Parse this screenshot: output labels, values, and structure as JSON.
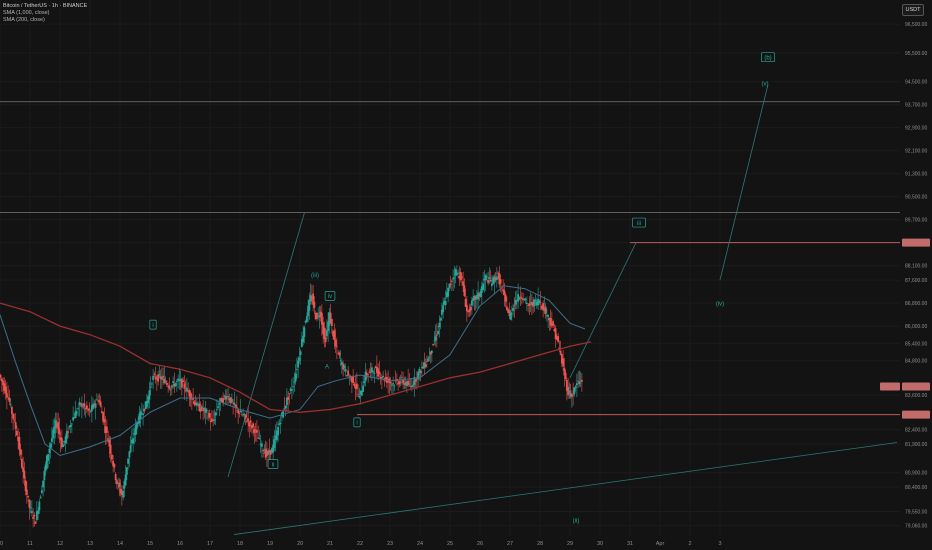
{
  "legend": {
    "symbol": "Bitcoin / TetherUS · 1h · BINANCE",
    "sma1": "SMA (1,000, close)",
    "sma2": "SMA (200, close)"
  },
  "currency": "USDT",
  "colors": {
    "background": "#131313",
    "up": "#26a69a",
    "down": "#ef5350",
    "sma200": "#9c2f2f",
    "sma_other": "#3e6f8c",
    "trend": "#2a7a76",
    "hline_gray": "#8a8a8a",
    "hline_red": "#d66",
    "wave": "#26a69a"
  },
  "chart_data": {
    "type": "candlestick",
    "price_axis_ticks": [
      "96,500.00",
      "95,500.00",
      "94,500.00",
      "93,700.00",
      "92,900.00",
      "92,100.00",
      "91,300.00",
      "90,500.00",
      "89,700.00",
      "88,900.00",
      "88,100.00",
      "87,600.00",
      "86,800.00",
      "86,000.00",
      "85,400.00",
      "84,800.00",
      "83,600.00",
      "82,400.00",
      "81,900.00",
      "80,900.00",
      "80,400.00",
      "79,550.00",
      "79,060.00"
    ],
    "date_ticks": [
      "10",
      "11",
      "12",
      "13",
      "14",
      "15",
      "16",
      "17",
      "18",
      "19",
      "20",
      "21",
      "22",
      "23",
      "24",
      "25",
      "26",
      "27",
      "28",
      "29",
      "30",
      "31",
      "Apr",
      "2",
      "3"
    ],
    "ylim": [
      78700,
      97200
    ],
    "xlim": [
      10,
      40
    ],
    "price_labels": [
      {
        "name": "current",
        "value": 83900,
        "text": ""
      },
      {
        "name": "support",
        "value": 82920,
        "text": ""
      },
      {
        "name": "resistance",
        "value": 88900,
        "text": ""
      }
    ],
    "horizontal_levels": [
      {
        "price": 93800,
        "color": "gray"
      },
      {
        "price": 89950,
        "color": "gray"
      },
      {
        "price": 88900,
        "color": "red",
        "from_day": 31.0
      },
      {
        "price": 82920,
        "color": "red",
        "from_day": 21.9
      }
    ],
    "trendlines": [
      {
        "x1": 17.6,
        "y1": 80750,
        "x2": 20.15,
        "y2": 89950,
        "color": "trend"
      },
      {
        "x1": 17.8,
        "y1": 78750,
        "x2": 39.9,
        "y2": 81950,
        "color": "trend"
      },
      {
        "x1": 29.0,
        "y1": 84200,
        "x2": 31.2,
        "y2": 88900,
        "color": "trend"
      },
      {
        "x1": 34.0,
        "y1": 87600,
        "x2": 35.6,
        "y2": 94400,
        "color": "trend"
      }
    ],
    "wave_labels": [
      {
        "id": "w1",
        "text": "i",
        "boxed": true,
        "day": 15.1,
        "price": 86050
      },
      {
        "id": "w2",
        "text": "ii",
        "boxed": true,
        "day": 19.1,
        "price": 81200
      },
      {
        "id": "w3",
        "text": "(iii)",
        "boxed": false,
        "day": 20.5,
        "price": 87780
      },
      {
        "id": "w4",
        "text": "iv",
        "boxed": true,
        "day": 21.0,
        "price": 87050
      },
      {
        "id": "w5",
        "text": "A",
        "boxed": false,
        "day": 20.9,
        "price": 84600
      },
      {
        "id": "w6",
        "text": "i",
        "boxed": true,
        "day": 21.9,
        "price": 82650
      },
      {
        "id": "w7",
        "text": "(ii)",
        "boxed": false,
        "day": 29.2,
        "price": 79250
      },
      {
        "id": "w8",
        "text": "iii",
        "boxed": true,
        "day": 31.3,
        "price": 89600
      },
      {
        "id": "w9",
        "text": "(iv)",
        "boxed": false,
        "day": 34.0,
        "price": 86800
      },
      {
        "id": "w10",
        "text": "(v)",
        "boxed": false,
        "day": 35.5,
        "price": 94450
      },
      {
        "id": "w11",
        "text": "(b)",
        "boxed": true,
        "day": 35.6,
        "price": 95350
      }
    ],
    "price_path": [
      [
        10.0,
        84300
      ],
      [
        10.3,
        83500
      ],
      [
        10.6,
        82200
      ],
      [
        10.8,
        80800
      ],
      [
        11.0,
        79700
      ],
      [
        11.2,
        79200
      ],
      [
        11.4,
        80300
      ],
      [
        11.6,
        81500
      ],
      [
        11.9,
        82700
      ],
      [
        12.1,
        81800
      ],
      [
        12.4,
        82700
      ],
      [
        12.7,
        83300
      ],
      [
        13.0,
        83000
      ],
      [
        13.3,
        83500
      ],
      [
        13.5,
        82600
      ],
      [
        13.7,
        81700
      ],
      [
        13.9,
        80600
      ],
      [
        14.1,
        80100
      ],
      [
        14.3,
        81500
      ],
      [
        14.6,
        82700
      ],
      [
        14.9,
        83300
      ],
      [
        15.1,
        84200
      ],
      [
        15.4,
        84200
      ],
      [
        15.7,
        83900
      ],
      [
        16.0,
        84100
      ],
      [
        16.3,
        83700
      ],
      [
        16.6,
        83200
      ],
      [
        16.9,
        83000
      ],
      [
        17.1,
        82600
      ],
      [
        17.3,
        83300
      ],
      [
        17.6,
        83600
      ],
      [
        17.9,
        83100
      ],
      [
        18.2,
        82800
      ],
      [
        18.5,
        82400
      ],
      [
        18.7,
        81900
      ],
      [
        18.9,
        81500
      ],
      [
        19.1,
        81700
      ],
      [
        19.3,
        82500
      ],
      [
        19.5,
        83200
      ],
      [
        19.8,
        84000
      ],
      [
        20.0,
        85000
      ],
      [
        20.2,
        86200
      ],
      [
        20.4,
        87100
      ],
      [
        20.55,
        86300
      ],
      [
        20.7,
        86500
      ],
      [
        20.85,
        85400
      ],
      [
        21.0,
        86400
      ],
      [
        21.2,
        85300
      ],
      [
        21.4,
        84700
      ],
      [
        21.6,
        84300
      ],
      [
        21.8,
        84100
      ],
      [
        22.0,
        83500
      ],
      [
        22.2,
        84300
      ],
      [
        22.5,
        84500
      ],
      [
        22.8,
        84200
      ],
      [
        23.1,
        84000
      ],
      [
        23.4,
        84100
      ],
      [
        23.7,
        83900
      ],
      [
        24.0,
        84400
      ],
      [
        24.3,
        84900
      ],
      [
        24.6,
        85800
      ],
      [
        24.8,
        86700
      ],
      [
        25.0,
        87400
      ],
      [
        25.2,
        87900
      ],
      [
        25.4,
        87700
      ],
      [
        25.6,
        86400
      ],
      [
        25.8,
        86900
      ],
      [
        26.0,
        87100
      ],
      [
        26.2,
        87700
      ],
      [
        26.4,
        87500
      ],
      [
        26.6,
        87800
      ],
      [
        26.8,
        87100
      ],
      [
        27.0,
        86300
      ],
      [
        27.2,
        86900
      ],
      [
        27.4,
        87100
      ],
      [
        27.6,
        86700
      ],
      [
        27.8,
        86800
      ],
      [
        28.0,
        86900
      ],
      [
        28.2,
        86500
      ],
      [
        28.4,
        86100
      ],
      [
        28.6,
        85500
      ],
      [
        28.8,
        84500
      ],
      [
        28.95,
        83700
      ],
      [
        29.1,
        83600
      ],
      [
        29.25,
        84000
      ],
      [
        29.4,
        84100
      ]
    ],
    "sma200_path": [
      [
        10.0,
        86800
      ],
      [
        11.0,
        86500
      ],
      [
        12.0,
        86000
      ],
      [
        13.0,
        85700
      ],
      [
        14.0,
        85300
      ],
      [
        15.0,
        84700
      ],
      [
        16.0,
        84500
      ],
      [
        17.0,
        84200
      ],
      [
        18.0,
        83700
      ],
      [
        19.0,
        83100
      ],
      [
        20.0,
        83000
      ],
      [
        21.0,
        83100
      ],
      [
        22.0,
        83300
      ],
      [
        23.0,
        83600
      ],
      [
        24.0,
        83900
      ],
      [
        25.0,
        84200
      ],
      [
        26.0,
        84400
      ],
      [
        27.0,
        84700
      ],
      [
        28.0,
        85000
      ],
      [
        29.0,
        85300
      ],
      [
        29.7,
        85450
      ]
    ],
    "sma_other_path": [
      [
        10.0,
        86400
      ],
      [
        10.5,
        84800
      ],
      [
        11.0,
        83300
      ],
      [
        11.5,
        81900
      ],
      [
        12.0,
        81500
      ],
      [
        13.0,
        81800
      ],
      [
        14.0,
        82200
      ],
      [
        15.0,
        83000
      ],
      [
        16.0,
        83500
      ],
      [
        17.0,
        83500
      ],
      [
        18.0,
        83100
      ],
      [
        19.0,
        82800
      ],
      [
        20.0,
        83100
      ],
      [
        20.6,
        83900
      ],
      [
        21.2,
        84100
      ],
      [
        22.0,
        84300
      ],
      [
        23.0,
        84100
      ],
      [
        24.0,
        84200
      ],
      [
        25.0,
        85000
      ],
      [
        26.0,
        86700
      ],
      [
        26.8,
        87400
      ],
      [
        27.5,
        87300
      ],
      [
        28.3,
        86900
      ],
      [
        29.0,
        86100
      ],
      [
        29.5,
        85900
      ]
    ]
  }
}
